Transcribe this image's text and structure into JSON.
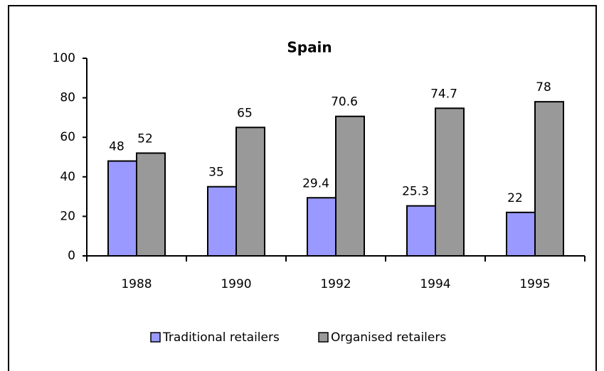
{
  "chart_data": {
    "type": "bar",
    "title": "Spain",
    "categories": [
      "1988",
      "1990",
      "1992",
      "1994",
      "1995"
    ],
    "series": [
      {
        "name": "Traditional retailers",
        "color": "#9999ff",
        "values": [
          48,
          35,
          29.4,
          25.3,
          22
        ]
      },
      {
        "name": "Organised retailers",
        "color": "#999999",
        "values": [
          52,
          65,
          70.6,
          74.7,
          78
        ]
      }
    ],
    "ylim": [
      0,
      100
    ],
    "yticks": [
      0,
      20,
      40,
      60,
      80,
      100
    ],
    "legend": "bottom"
  }
}
